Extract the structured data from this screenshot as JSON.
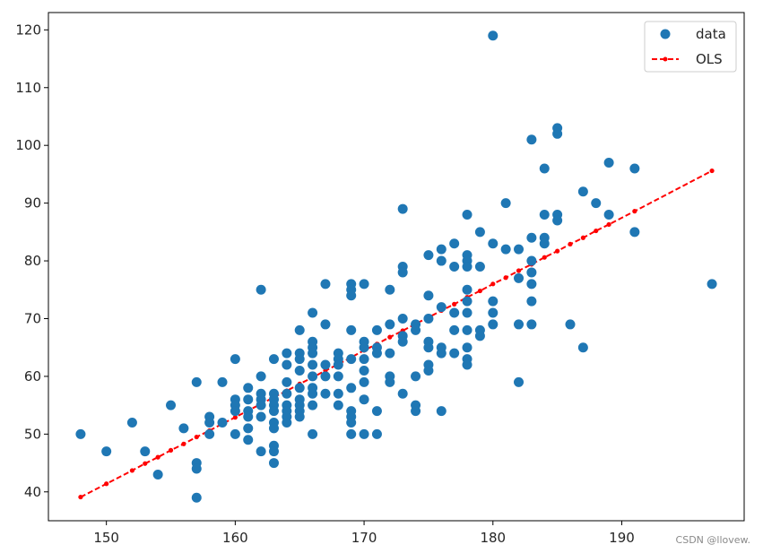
{
  "chart_data": {
    "type": "scatter",
    "title": "",
    "xlabel": "",
    "ylabel": "",
    "xlim": [
      145.5,
      199.5
    ],
    "ylim": [
      35,
      123
    ],
    "x_ticks": [
      150,
      160,
      170,
      180,
      190
    ],
    "y_ticks": [
      40,
      50,
      60,
      70,
      80,
      90,
      100,
      110,
      120
    ],
    "grid": false,
    "legend_position": "top-right",
    "series": [
      {
        "name": "data",
        "kind": "scatter",
        "color": "#1f77b4",
        "points": [
          [
            148,
            50
          ],
          [
            150,
            47
          ],
          [
            152,
            52
          ],
          [
            153,
            47
          ],
          [
            154,
            43
          ],
          [
            155,
            55
          ],
          [
            156,
            51
          ],
          [
            157,
            59
          ],
          [
            157,
            45
          ],
          [
            157,
            44
          ],
          [
            157,
            39
          ],
          [
            158,
            53
          ],
          [
            158,
            52
          ],
          [
            158,
            50
          ],
          [
            159,
            59
          ],
          [
            159,
            52
          ],
          [
            160,
            63
          ],
          [
            160,
            56
          ],
          [
            160,
            55
          ],
          [
            160,
            54
          ],
          [
            160,
            50
          ],
          [
            161,
            58
          ],
          [
            161,
            56
          ],
          [
            161,
            54
          ],
          [
            161,
            53
          ],
          [
            161,
            51
          ],
          [
            161,
            49
          ],
          [
            162,
            75
          ],
          [
            162,
            60
          ],
          [
            162,
            57
          ],
          [
            162,
            56
          ],
          [
            162,
            55
          ],
          [
            162,
            53
          ],
          [
            162,
            47
          ],
          [
            163,
            63
          ],
          [
            163,
            57
          ],
          [
            163,
            56
          ],
          [
            163,
            55
          ],
          [
            163,
            54
          ],
          [
            163,
            52
          ],
          [
            163,
            51
          ],
          [
            163,
            48
          ],
          [
            163,
            47
          ],
          [
            163,
            45
          ],
          [
            164,
            64
          ],
          [
            164,
            62
          ],
          [
            164,
            59
          ],
          [
            164,
            57
          ],
          [
            164,
            55
          ],
          [
            164,
            54
          ],
          [
            164,
            53
          ],
          [
            164,
            52
          ],
          [
            165,
            68
          ],
          [
            165,
            64
          ],
          [
            165,
            63
          ],
          [
            165,
            61
          ],
          [
            165,
            58
          ],
          [
            165,
            56
          ],
          [
            165,
            55
          ],
          [
            165,
            54
          ],
          [
            165,
            53
          ],
          [
            166,
            71
          ],
          [
            166,
            66
          ],
          [
            166,
            65
          ],
          [
            166,
            64
          ],
          [
            166,
            62
          ],
          [
            166,
            60
          ],
          [
            166,
            58
          ],
          [
            166,
            57
          ],
          [
            166,
            55
          ],
          [
            166,
            50
          ],
          [
            167,
            76
          ],
          [
            167,
            69
          ],
          [
            167,
            62
          ],
          [
            167,
            60
          ],
          [
            167,
            57
          ],
          [
            168,
            64
          ],
          [
            168,
            63
          ],
          [
            168,
            62
          ],
          [
            168,
            60
          ],
          [
            168,
            57
          ],
          [
            168,
            55
          ],
          [
            169,
            76
          ],
          [
            169,
            75
          ],
          [
            169,
            74
          ],
          [
            169,
            68
          ],
          [
            169,
            63
          ],
          [
            169,
            58
          ],
          [
            169,
            54
          ],
          [
            169,
            53
          ],
          [
            169,
            52
          ],
          [
            169,
            50
          ],
          [
            170,
            76
          ],
          [
            170,
            66
          ],
          [
            170,
            65
          ],
          [
            170,
            63
          ],
          [
            170,
            61
          ],
          [
            170,
            59
          ],
          [
            170,
            56
          ],
          [
            170,
            50
          ],
          [
            171,
            68
          ],
          [
            171,
            65
          ],
          [
            171,
            64
          ],
          [
            171,
            54
          ],
          [
            171,
            50
          ],
          [
            172,
            75
          ],
          [
            172,
            69
          ],
          [
            172,
            64
          ],
          [
            172,
            60
          ],
          [
            172,
            59
          ],
          [
            173,
            89
          ],
          [
            173,
            79
          ],
          [
            173,
            78
          ],
          [
            173,
            70
          ],
          [
            173,
            67
          ],
          [
            173,
            66
          ],
          [
            173,
            57
          ],
          [
            174,
            69
          ],
          [
            174,
            68
          ],
          [
            174,
            60
          ],
          [
            174,
            55
          ],
          [
            174,
            54
          ],
          [
            175,
            81
          ],
          [
            175,
            74
          ],
          [
            175,
            70
          ],
          [
            175,
            66
          ],
          [
            175,
            65
          ],
          [
            175,
            62
          ],
          [
            175,
            61
          ],
          [
            176,
            82
          ],
          [
            176,
            80
          ],
          [
            176,
            72
          ],
          [
            176,
            65
          ],
          [
            176,
            64
          ],
          [
            176,
            54
          ],
          [
            177,
            83
          ],
          [
            177,
            79
          ],
          [
            177,
            71
          ],
          [
            177,
            68
          ],
          [
            177,
            64
          ],
          [
            178,
            88
          ],
          [
            178,
            81
          ],
          [
            178,
            80
          ],
          [
            178,
            79
          ],
          [
            178,
            75
          ],
          [
            178,
            73
          ],
          [
            178,
            71
          ],
          [
            178,
            68
          ],
          [
            178,
            65
          ],
          [
            178,
            63
          ],
          [
            178,
            62
          ],
          [
            179,
            85
          ],
          [
            179,
            79
          ],
          [
            179,
            68
          ],
          [
            179,
            67
          ],
          [
            180,
            119
          ],
          [
            180,
            83
          ],
          [
            180,
            73
          ],
          [
            180,
            71
          ],
          [
            180,
            69
          ],
          [
            181,
            90
          ],
          [
            181,
            82
          ],
          [
            182,
            82
          ],
          [
            182,
            77
          ],
          [
            182,
            69
          ],
          [
            182,
            59
          ],
          [
            183,
            101
          ],
          [
            183,
            84
          ],
          [
            183,
            80
          ],
          [
            183,
            78
          ],
          [
            183,
            76
          ],
          [
            183,
            73
          ],
          [
            183,
            69
          ],
          [
            184,
            96
          ],
          [
            184,
            88
          ],
          [
            184,
            84
          ],
          [
            184,
            83
          ],
          [
            185,
            103
          ],
          [
            185,
            102
          ],
          [
            185,
            88
          ],
          [
            185,
            87
          ],
          [
            186,
            69
          ],
          [
            187,
            92
          ],
          [
            187,
            65
          ],
          [
            188,
            90
          ],
          [
            189,
            97
          ],
          [
            189,
            88
          ],
          [
            191,
            96
          ],
          [
            191,
            85
          ],
          [
            197,
            76
          ]
        ]
      },
      {
        "name": "OLS",
        "kind": "line",
        "color": "#ff0000",
        "line_style": "dashed",
        "marker": "dot",
        "x": [
          148,
          150,
          152,
          153,
          154,
          155,
          156,
          157,
          158,
          159,
          160,
          161,
          162,
          163,
          164,
          165,
          166,
          167,
          168,
          169,
          170,
          171,
          172,
          173,
          174,
          175,
          176,
          177,
          178,
          179,
          180,
          181,
          182,
          183,
          184,
          185,
          186,
          187,
          188,
          189,
          191,
          197
        ],
        "y": [
          39.1,
          41.4,
          43.7,
          44.9,
          46.0,
          47.2,
          48.3,
          49.5,
          50.6,
          51.8,
          52.9,
          54.1,
          55.2,
          56.4,
          57.5,
          58.7,
          59.8,
          61.0,
          62.1,
          63.3,
          64.5,
          65.6,
          66.8,
          67.9,
          69.1,
          70.2,
          71.4,
          72.5,
          73.7,
          74.8,
          76.0,
          77.1,
          78.3,
          79.4,
          80.6,
          81.7,
          82.9,
          84.0,
          85.2,
          86.3,
          88.6,
          95.6
        ]
      }
    ]
  },
  "watermark": "CSDN @llovew."
}
